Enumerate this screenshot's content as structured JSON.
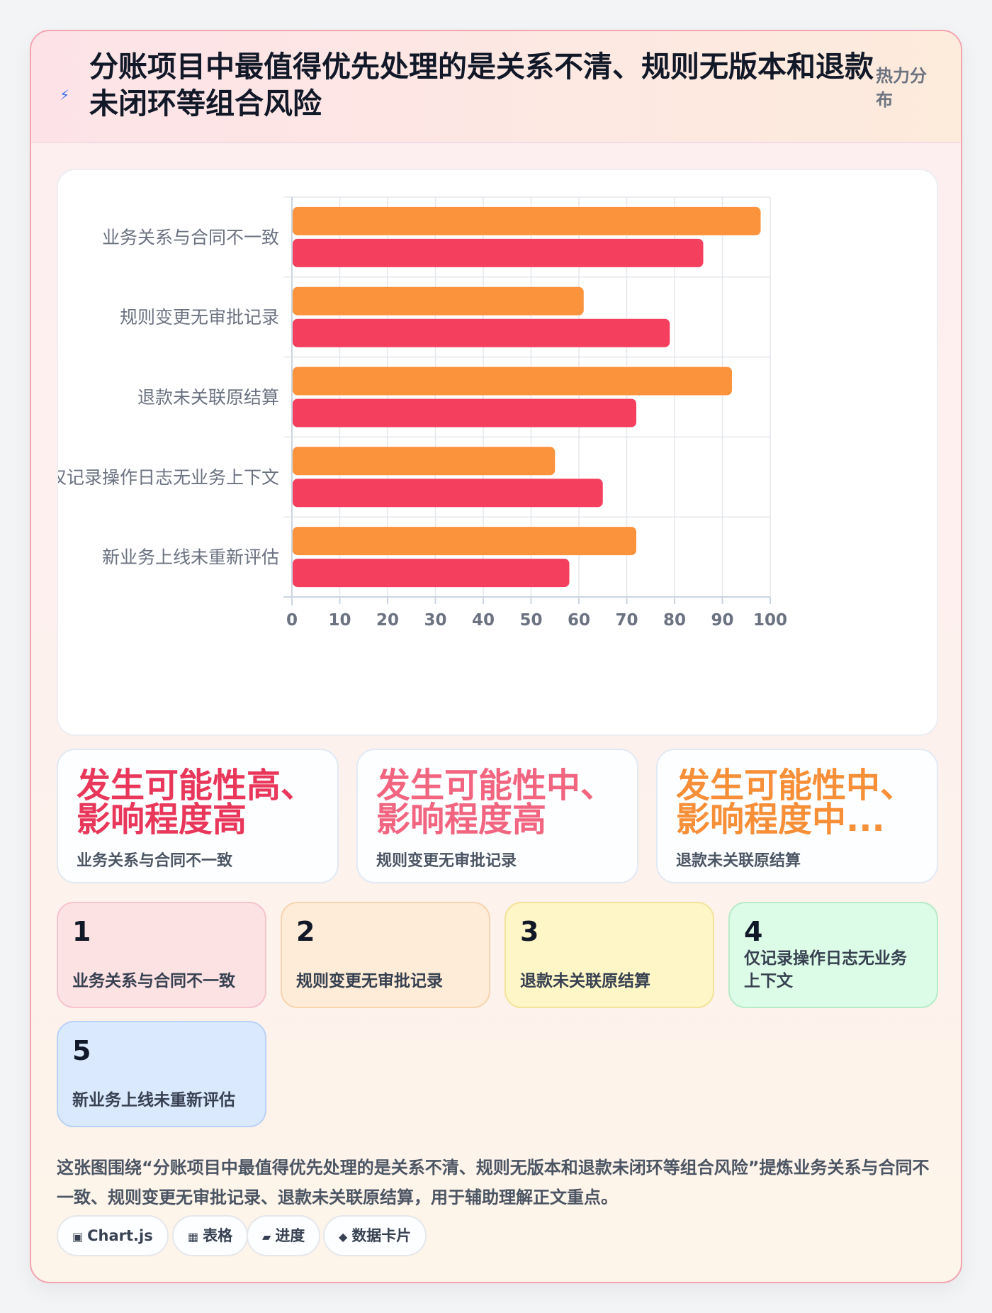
{
  "header": {
    "icon": "bolt-icon",
    "icon_glyph": "⚡",
    "title": "分账项目中最值得优先处理的是关系不清、规则无版本和退款未闭环等组合风险",
    "tag": "热力分布"
  },
  "chart_data": {
    "type": "bar",
    "orientation": "horizontal",
    "categories": [
      "业务关系与合同不一致",
      "规则变更无审批记录",
      "退款未关联原结算",
      "仅记录操作日志无业务上下文",
      "新业务上线未重新评估"
    ],
    "series": [
      {
        "values": [
          98,
          61,
          92,
          55,
          72
        ],
        "color": "#fb923c"
      },
      {
        "values": [
          86,
          79,
          72,
          65,
          58
        ],
        "color": "#f43f5e"
      }
    ],
    "xlim": [
      0,
      100
    ],
    "xticks": [
      0,
      10,
      20,
      30,
      40,
      50,
      60,
      70,
      80,
      90,
      100
    ],
    "title": "",
    "xlabel": "",
    "ylabel": "",
    "grid": true,
    "legend": "none"
  },
  "stats": [
    {
      "big": "发生可能性高、影响程度高",
      "small": "业务关系与合同不一致",
      "color": "#e8375a"
    },
    {
      "big": "发生可能性中、影响程度高",
      "small": "规则变更无审批记录",
      "color": "#f26580"
    },
    {
      "big": "发生可能性中、影响程度中...",
      "small": "退款未关联原结算",
      "color": "#f78f38"
    }
  ],
  "ranks": [
    {
      "num": "1",
      "label": "业务关系与合同不一致",
      "bg": "#fde2e4",
      "border": "#f6c4cb"
    },
    {
      "num": "2",
      "label": "规则变更无审批记录",
      "bg": "#feecd8",
      "border": "#f8d4b0"
    },
    {
      "num": "3",
      "label": "退款未关联原结算",
      "bg": "#fef6c7",
      "border": "#f3e39a"
    },
    {
      "num": "4",
      "label": "仅记录操作日志无业务上下文",
      "bg": "#dcfce7",
      "border": "#b7ecc9"
    },
    {
      "num": "5",
      "label": "新业务上线未重新评估",
      "bg": "#dbe9fe",
      "border": "#b9d2f7"
    }
  ],
  "summary": "这张图围绕“分账项目中最值得优先处理的是关系不清、规则无版本和退款未闭环等组合风险”提炼业务关系与合同不一致、规则变更无审批记录、退款未关联原结算，用于辅助理解正文重点。",
  "pills": [
    {
      "icon": "chart-icon",
      "glyph": "▣",
      "label": "Chart.js"
    },
    {
      "icon": "table-icon",
      "glyph": "▦",
      "label": "表格"
    },
    {
      "icon": "progress-icon",
      "glyph": "▰",
      "label": "进度"
    },
    {
      "icon": "card-icon",
      "glyph": "◆",
      "label": "数据卡片"
    }
  ]
}
